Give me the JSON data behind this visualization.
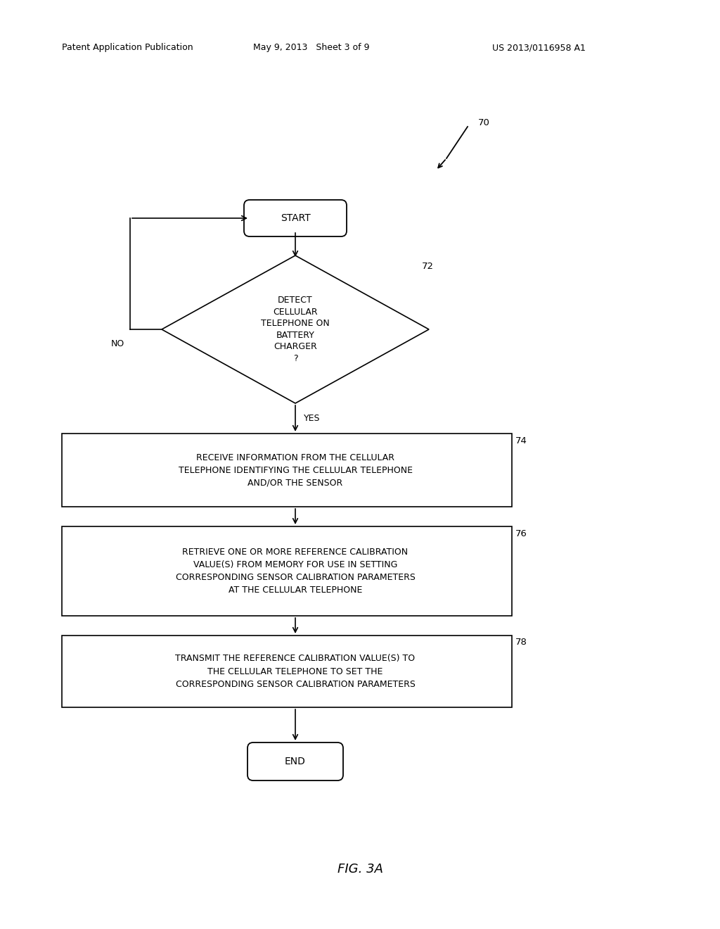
{
  "bg_color": "#ffffff",
  "fig_width": 10.24,
  "fig_height": 13.2,
  "header_left": "Patent Application Publication",
  "header_mid": "May 9, 2013   Sheet 3 of 9",
  "header_right": "US 2013/0116958 A1",
  "figure_label": "FIG. 3A",
  "ref_70": "70",
  "ref_72": "72",
  "ref_74": "74",
  "ref_76": "76",
  "ref_78": "78",
  "start_text": "START",
  "end_text": "END",
  "diamond_lines": [
    "DETECT",
    "CELLULAR",
    "TELEPHONE ON",
    "BATTERY",
    "CHARGER",
    "?"
  ],
  "box74_text": "RECEIVE INFORMATION FROM THE CELLULAR\nTELEPHONE IDENTIFYING THE CELLULAR TELEPHONE\nAND/OR THE SENSOR",
  "box76_text": "RETRIEVE ONE OR MORE REFERENCE CALIBRATION\nVALUE(S) FROM MEMORY FOR USE IN SETTING\nCORRESPONDING SENSOR CALIBRATION PARAMETERS\nAT THE CELLULAR TELEPHONE",
  "box78_text": "TRANSMIT THE REFERENCE CALIBRATION VALUE(S) TO\nTHE CELLULAR TELEPHONE TO SET THE\nCORRESPONDING SENSOR CALIBRATION PARAMETERS",
  "yes_label": "YES",
  "no_label": "NO",
  "line_color": "#000000",
  "text_color": "#000000",
  "font_size_box": 9.0,
  "font_size_terminal": 10,
  "font_size_header": 9.0,
  "font_size_ref": 9.5,
  "font_size_label": 13,
  "font_size_yesno": 9.0
}
